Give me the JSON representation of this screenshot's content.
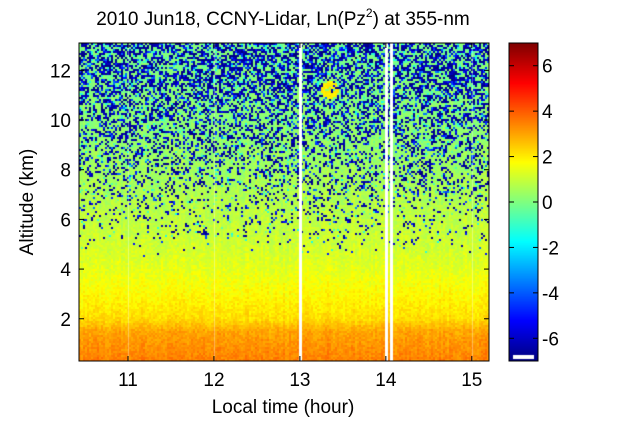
{
  "chart_data": {
    "type": "heatmap",
    "title": {
      "prefix": "2010 Jun18, CCNY-Lidar, Ln(Pz",
      "superscript": "2",
      "suffix": ") at 355-nm"
    },
    "xlabel": "Local time (hour)",
    "ylabel": "Altitude (km)",
    "x_range_hours": [
      10.43,
      15.2
    ],
    "y_range_km": [
      0.3,
      13.1
    ],
    "x_ticks": [
      {
        "value": 11,
        "label": "11"
      },
      {
        "value": 12,
        "label": "12"
      },
      {
        "value": 13,
        "label": "13"
      },
      {
        "value": 14,
        "label": "14"
      },
      {
        "value": 15,
        "label": "15"
      }
    ],
    "y_ticks": [
      {
        "value": 2,
        "label": "2"
      },
      {
        "value": 4,
        "label": "4"
      },
      {
        "value": 6,
        "label": "6"
      },
      {
        "value": 8,
        "label": "8"
      },
      {
        "value": 10,
        "label": "10"
      },
      {
        "value": 12,
        "label": "12"
      }
    ],
    "colorbar": {
      "range": [
        -7,
        7
      ],
      "colormap": "jet",
      "ticks": [
        {
          "value": 6,
          "label": "6"
        },
        {
          "value": 4,
          "label": "4"
        },
        {
          "value": 2,
          "label": "2"
        },
        {
          "value": 0,
          "label": "0"
        },
        {
          "value": -2,
          "label": "-2"
        },
        {
          "value": -4,
          "label": "-4"
        },
        {
          "value": -6,
          "label": "-6"
        }
      ]
    },
    "signal_profile": [
      {
        "altitude_km": 0.3,
        "ln_pz2": 3.5
      },
      {
        "altitude_km": 1.5,
        "ln_pz2": 3.0
      },
      {
        "altitude_km": 2.0,
        "ln_pz2": 2.2
      },
      {
        "altitude_km": 3.0,
        "ln_pz2": 1.8
      },
      {
        "altitude_km": 4.0,
        "ln_pz2": 1.4
      },
      {
        "altitude_km": 5.0,
        "ln_pz2": 1.1
      },
      {
        "altitude_km": 6.0,
        "ln_pz2": 0.9
      },
      {
        "altitude_km": 8.0,
        "ln_pz2": 0.5
      },
      {
        "altitude_km": 10.0,
        "ln_pz2": 0.2
      },
      {
        "altitude_km": 13.1,
        "ln_pz2": 0.0
      }
    ],
    "data_gaps_hours": [
      13.0,
      14.0,
      14.06
    ],
    "features": [
      {
        "type": "cloud",
        "time_hours": 13.35,
        "altitude_km": 11.2,
        "ln_pz2": 2.0
      }
    ]
  }
}
